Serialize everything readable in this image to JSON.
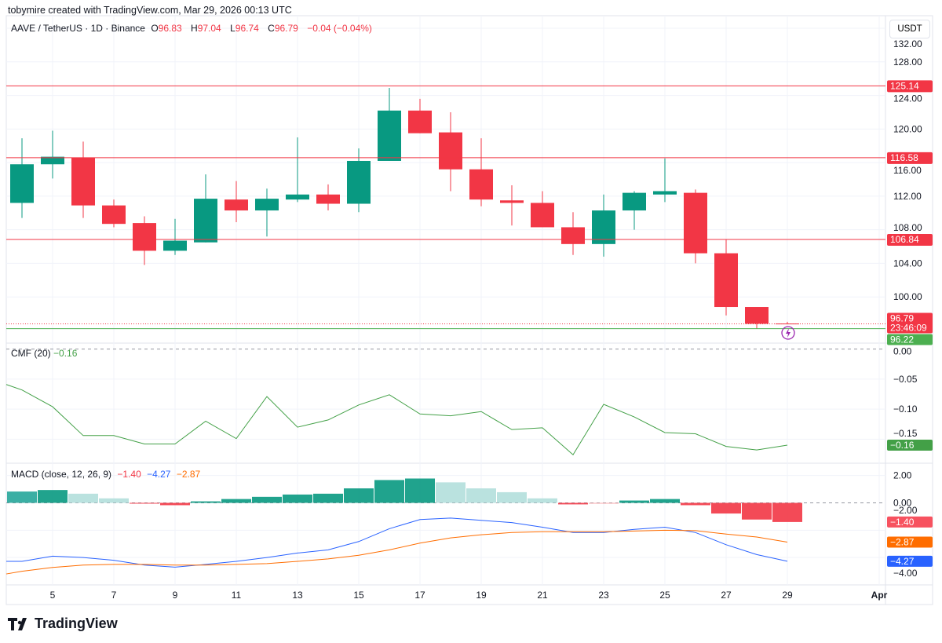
{
  "header": {
    "credit": "tobymire created with TradingView.com, Mar 29, 2026 00:13 UTC"
  },
  "legend": {
    "symbol": "AAVE / TetherUS · 1D · Binance",
    "o_label": "O",
    "o": "96.83",
    "h_label": "H",
    "h": "97.04",
    "l_label": "L",
    "l": "96.74",
    "c_label": "C",
    "c": "96.79",
    "change": "−0.04 (−0.04%)"
  },
  "currency": "USDT",
  "cmf_legend": {
    "name": "CMF (20)",
    "value": "−0.16"
  },
  "macd_legend": {
    "name": "MACD (close, 12, 26, 9)",
    "hist": "−1.40",
    "macd": "−4.27",
    "signal": "−2.87"
  },
  "logo": "TradingView",
  "colors": {
    "up": "#089981",
    "down": "#f23645",
    "up_light": "#b2dfdb",
    "down_light": "#faa1a4",
    "cmf": "#43a047",
    "macd": "#2962ff",
    "signal": "#ff6d00"
  },
  "chart_data": [
    {
      "type": "candlestick",
      "title": "AAVE / TetherUS · 1D · Binance",
      "x": [
        4,
        5,
        6,
        7,
        8,
        9,
        10,
        11,
        12,
        13,
        14,
        15,
        16,
        17,
        18,
        19,
        20,
        21,
        22,
        23,
        24,
        25,
        26,
        27,
        28,
        29
      ],
      "x_tick_labels": [
        "5",
        "7",
        "9",
        "11",
        "13",
        "15",
        "17",
        "19",
        "21",
        "23",
        "25",
        "27",
        "29",
        "Apr"
      ],
      "open": [
        111.2,
        115.8,
        116.6,
        110.9,
        108.8,
        105.5,
        106.5,
        111.6,
        110.3,
        111.6,
        112.2,
        111.1,
        116.2,
        122.2,
        119.6,
        115.2,
        111.5,
        111.2,
        108.3,
        106.3,
        110.3,
        112.2,
        112.4,
        105.2,
        98.8,
        96.83
      ],
      "high": [
        118.9,
        119.8,
        118.5,
        111.6,
        109.6,
        109.3,
        114.6,
        113.8,
        112.9,
        119.0,
        113.4,
        117.7,
        124.9,
        123.6,
        122.0,
        118.9,
        113.3,
        112.6,
        110.1,
        112.2,
        112.6,
        116.5,
        112.8,
        106.8,
        98.8,
        97.04
      ],
      "low": [
        109.4,
        114.1,
        109.4,
        108.3,
        103.8,
        105.0,
        106.5,
        108.9,
        107.2,
        111.3,
        110.3,
        110.1,
        116.2,
        119.5,
        112.6,
        110.8,
        108.5,
        108.3,
        105.0,
        104.8,
        108.0,
        111.3,
        104.0,
        97.8,
        96.2,
        96.74
      ],
      "close": [
        115.8,
        116.7,
        110.9,
        108.7,
        105.5,
        106.7,
        111.7,
        110.3,
        111.7,
        112.2,
        111.1,
        116.2,
        122.2,
        119.5,
        115.2,
        111.6,
        111.2,
        108.3,
        106.3,
        110.3,
        112.4,
        112.6,
        105.2,
        98.8,
        96.8,
        96.79
      ],
      "y_ticks": [
        100,
        104,
        108,
        112,
        116,
        120,
        124,
        128,
        132
      ],
      "ylim": [
        94.5,
        133.5
      ],
      "horizontal_lines": [
        {
          "value": 125.14,
          "label": "125.14",
          "color": "#f23645"
        },
        {
          "value": 116.58,
          "label": "116.58",
          "color": "#f23645"
        },
        {
          "value": 106.84,
          "label": "106.84",
          "color": "#f23645"
        },
        {
          "value": 96.22,
          "label": "96.22",
          "color": "#4caf50"
        }
      ],
      "last_price": {
        "value": 96.79,
        "label": "96.79",
        "countdown": "23:46:09"
      }
    },
    {
      "type": "line",
      "title": "CMF (20)",
      "x": [
        4,
        5,
        6,
        7,
        8,
        9,
        10,
        11,
        12,
        13,
        14,
        15,
        16,
        17,
        18,
        19,
        20,
        21,
        22,
        23,
        24,
        25,
        26,
        27,
        28,
        29
      ],
      "values": [
        -0.068,
        -0.096,
        -0.144,
        -0.144,
        -0.158,
        -0.158,
        -0.12,
        -0.149,
        -0.079,
        -0.13,
        -0.118,
        -0.093,
        -0.076,
        -0.108,
        -0.111,
        -0.104,
        -0.134,
        -0.131,
        -0.176,
        -0.092,
        -0.113,
        -0.139,
        -0.141,
        -0.162,
        -0.168,
        -0.16
      ],
      "y_ticks": [
        "0.00",
        "−0.05",
        "−0.10",
        "−0.15"
      ],
      "y_tick_values": [
        0,
        -0.05,
        -0.1,
        -0.15
      ],
      "ylim": [
        -0.19,
        0.01
      ],
      "last_label": "−0.16"
    },
    {
      "type": "bar+line",
      "title": "MACD (close, 12, 26, 9)",
      "x": [
        4,
        5,
        6,
        7,
        8,
        9,
        10,
        11,
        12,
        13,
        14,
        15,
        16,
        17,
        18,
        19,
        20,
        21,
        22,
        23,
        24,
        25,
        26,
        27,
        28,
        29
      ],
      "histogram": [
        0.83,
        0.94,
        0.67,
        0.33,
        -0.05,
        -0.17,
        0.11,
        0.28,
        0.44,
        0.61,
        0.67,
        1.06,
        1.67,
        1.78,
        1.5,
        1.06,
        0.78,
        0.33,
        -0.11,
        -0.05,
        0.17,
        0.28,
        -0.17,
        -0.78,
        -1.22,
        -1.4
      ],
      "macd": [
        -4.28,
        -3.9,
        -4.0,
        -4.2,
        -4.55,
        -4.7,
        -4.5,
        -4.28,
        -4.0,
        -3.67,
        -3.44,
        -2.83,
        -1.89,
        -1.22,
        -1.11,
        -1.28,
        -1.44,
        -1.78,
        -2.17,
        -2.17,
        -1.94,
        -1.78,
        -2.17,
        -3.06,
        -3.78,
        -4.27
      ],
      "signal": [
        -5.0,
        -4.72,
        -4.55,
        -4.5,
        -4.5,
        -4.55,
        -4.55,
        -4.5,
        -4.44,
        -4.28,
        -4.1,
        -3.83,
        -3.44,
        -2.94,
        -2.56,
        -2.33,
        -2.17,
        -2.11,
        -2.11,
        -2.11,
        -2.06,
        -2.0,
        -2.03,
        -2.28,
        -2.5,
        -2.87
      ],
      "y_ticks": [
        "2.00",
        "0.00",
        "−2.00",
        "−4.00"
      ],
      "y_tick_values": [
        2,
        0,
        -2,
        -4
      ],
      "ylim": [
        -6,
        2.9
      ],
      "last_labels": {
        "hist": "−1.40",
        "signal": "−2.87",
        "macd": "−4.27"
      }
    }
  ]
}
